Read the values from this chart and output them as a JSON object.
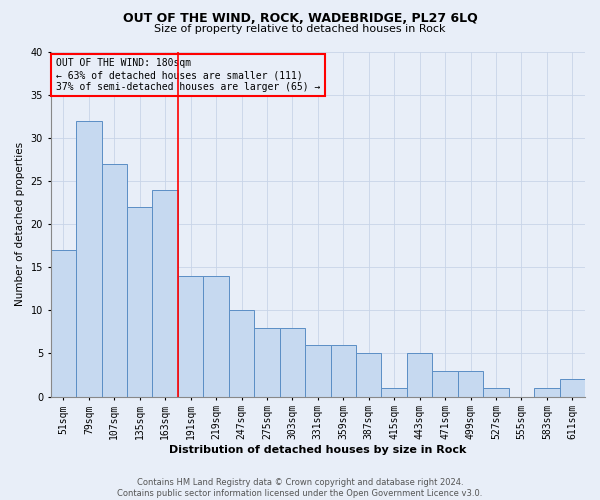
{
  "title": "OUT OF THE WIND, ROCK, WADEBRIDGE, PL27 6LQ",
  "subtitle": "Size of property relative to detached houses in Rock",
  "xlabel": "Distribution of detached houses by size in Rock",
  "ylabel": "Number of detached properties",
  "footer1": "Contains HM Land Registry data © Crown copyright and database right 2024.",
  "footer2": "Contains public sector information licensed under the Open Government Licence v3.0.",
  "annotation_title": "OUT OF THE WIND: 180sqm",
  "annotation_line1": "← 63% of detached houses are smaller (111)",
  "annotation_line2": "37% of semi-detached houses are larger (65) →",
  "categories": [
    "51sqm",
    "79sqm",
    "107sqm",
    "135sqm",
    "163sqm",
    "191sqm",
    "219sqm",
    "247sqm",
    "275sqm",
    "303sqm",
    "331sqm",
    "359sqm",
    "387sqm",
    "415sqm",
    "443sqm",
    "471sqm",
    "499sqm",
    "527sqm",
    "555sqm",
    "583sqm",
    "611sqm"
  ],
  "values": [
    17,
    32,
    27,
    22,
    24,
    14,
    14,
    10,
    8,
    8,
    6,
    6,
    5,
    1,
    5,
    3,
    3,
    1,
    0,
    1,
    2
  ],
  "bar_color": "#c6d9f0",
  "bar_edge_color": "#5b8ec5",
  "marker_bar_index": 4,
  "grid_color": "#c8d4e8",
  "background_color": "#e8eef8",
  "ylim": [
    0,
    40
  ],
  "yticks": [
    0,
    5,
    10,
    15,
    20,
    25,
    30,
    35,
    40
  ],
  "title_fontsize": 9,
  "subtitle_fontsize": 8,
  "xlabel_fontsize": 8,
  "ylabel_fontsize": 7.5,
  "tick_fontsize": 7,
  "annotation_fontsize": 7,
  "footer_fontsize": 6
}
